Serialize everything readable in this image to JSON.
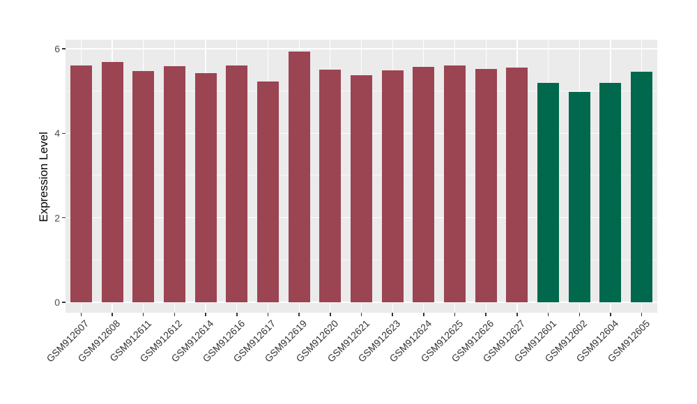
{
  "figure": {
    "background": "#FFFFFF",
    "panel_background": "#EBEBEB",
    "grid_color": "#FFFFFF",
    "axis_text_color": "#4D4D4D",
    "x_axis_text_color": "#333333",
    "axis_title_color": "#000000",
    "tick_mark_color": "#333333"
  },
  "chart_data": {
    "type": "bar",
    "title": "",
    "xlabel": "",
    "ylabel": "Expression Level",
    "categories": [
      "GSM912607",
      "GSM912608",
      "GSM912611",
      "GSM912612",
      "GSM912614",
      "GSM912616",
      "GSM912617",
      "GSM912619",
      "GSM912620",
      "GSM912621",
      "GSM912623",
      "GSM912624",
      "GSM912625",
      "GSM912626",
      "GSM912627",
      "GSM912601",
      "GSM912602",
      "GSM912604",
      "GSM912605"
    ],
    "values": [
      5.6,
      5.69,
      5.47,
      5.58,
      5.42,
      5.61,
      5.22,
      5.93,
      5.5,
      5.38,
      5.49,
      5.57,
      5.61,
      5.53,
      5.55,
      5.2,
      4.97,
      5.19,
      5.46
    ],
    "groups": [
      0,
      0,
      0,
      0,
      0,
      0,
      0,
      0,
      0,
      0,
      0,
      0,
      0,
      0,
      0,
      1,
      1,
      1,
      1
    ],
    "group_colors": [
      "#9B4452",
      "#00684C"
    ],
    "group_names": [
      "red-group",
      "green-group"
    ],
    "y_ticks": [
      0,
      2,
      4,
      6
    ],
    "y_minor_ticks": [
      1,
      3,
      5
    ],
    "ylim": [
      -0.25,
      6.21
    ],
    "grid": "on",
    "legend": "none",
    "x_tick_rotation_deg": 45
  }
}
